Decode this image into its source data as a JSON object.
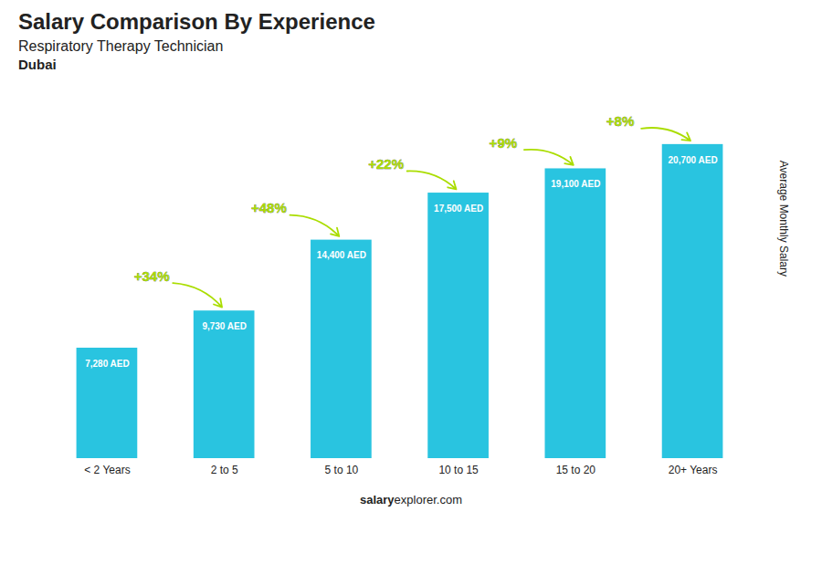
{
  "chart_data": {
    "type": "bar",
    "title": "Salary Comparison By Experience",
    "subtitle": [
      "Respiratory Therapy Technician",
      "Dubai"
    ],
    "ylabel": "Average Monthly Salary",
    "categories": [
      "< 2 Years",
      "2 to 5",
      "5 to 10",
      "10 to 15",
      "15 to 20",
      "20+ Years"
    ],
    "values": [
      7280,
      9730,
      14400,
      17500,
      19100,
      20700
    ],
    "value_labels": [
      "7,280 AED",
      "9,730 AED",
      "14,400 AED",
      "17,500 AED",
      "19,100 AED",
      "20,700 AED"
    ],
    "data_labels": true,
    "color": "#29C4E0",
    "ylim": [
      0,
      24000
    ],
    "tick_labels": "x",
    "grid": false,
    "annotations": [
      {
        "text": "+34%",
        "color": "#AADD00"
      },
      {
        "text": "+48%",
        "color": "#AADD00"
      },
      {
        "text": "+22%",
        "color": "#AADD00"
      },
      {
        "text": "+9%",
        "color": "#AADD00"
      },
      {
        "text": "+8%",
        "color": "#AADD00"
      }
    ],
    "caption": [
      "salary",
      "explorer.com"
    ]
  }
}
